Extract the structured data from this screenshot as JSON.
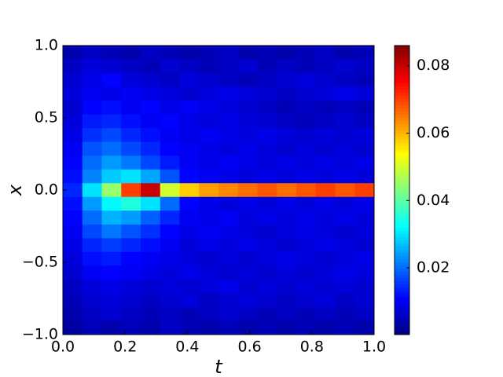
{
  "chart_data": {
    "type": "heatmap",
    "colormap": "jet",
    "xlabel": "t",
    "ylabel": "x",
    "xlim": [
      0,
      1
    ],
    "ylim": [
      -1,
      1
    ],
    "xticks": [
      {
        "value": 0,
        "label": "0.0"
      },
      {
        "value": 0.2,
        "label": "0.2"
      },
      {
        "value": 0.4,
        "label": "0.4"
      },
      {
        "value": 0.6,
        "label": "0.6"
      },
      {
        "value": 0.8,
        "label": "0.8"
      },
      {
        "value": 1,
        "label": "1.0"
      }
    ],
    "yticks": [
      {
        "value": -1,
        "label": "−1.0"
      },
      {
        "value": -0.5,
        "label": "−0.5"
      },
      {
        "value": 0,
        "label": "0.0"
      },
      {
        "value": 0.5,
        "label": "0.5"
      },
      {
        "value": 1,
        "label": "1.0"
      }
    ],
    "clim": [
      0.0002,
      0.086
    ],
    "cticks": [
      0.02,
      0.04,
      0.06,
      0.08
    ],
    "x": [
      0.03125,
      0.09375,
      0.15625,
      0.21875,
      0.28125,
      0.34375,
      0.40625,
      0.46875,
      0.53125,
      0.59375,
      0.65625,
      0.71875,
      0.78125,
      0.84375,
      0.90625,
      0.96875
    ],
    "y": [
      0.952,
      0.857,
      0.762,
      0.667,
      0.571,
      0.476,
      0.381,
      0.286,
      0.19,
      0.095,
      0,
      -0.095,
      -0.19,
      -0.286,
      -0.381,
      -0.476,
      -0.571,
      -0.667,
      -0.762,
      -0.857,
      -0.952
    ],
    "z": [
      [
        0.004,
        0.006,
        0.005,
        0.004,
        0.006,
        0.005,
        0.004,
        0.005,
        0.006,
        0.004,
        0.005,
        0.004,
        0.005,
        0.006,
        0.004,
        0.005
      ],
      [
        0.006,
        0.008,
        0.007,
        0.006,
        0.005,
        0.007,
        0.006,
        0.005,
        0.006,
        0.007,
        0.005,
        0.006,
        0.005,
        0.006,
        0.007,
        0.006
      ],
      [
        0.007,
        0.009,
        0.011,
        0.008,
        0.007,
        0.006,
        0.008,
        0.007,
        0.006,
        0.005,
        0.006,
        0.007,
        0.008,
        0.007,
        0.006,
        0.005
      ],
      [
        0.008,
        0.01,
        0.009,
        0.01,
        0.009,
        0.008,
        0.007,
        0.008,
        0.009,
        0.008,
        0.007,
        0.006,
        0.007,
        0.008,
        0.009,
        0.008
      ],
      [
        0.007,
        0.011,
        0.012,
        0.01,
        0.011,
        0.009,
        0.01,
        0.009,
        0.008,
        0.007,
        0.006,
        0.005,
        0.006,
        0.005,
        0.006,
        0.005
      ],
      [
        0.008,
        0.013,
        0.014,
        0.012,
        0.01,
        0.011,
        0.009,
        0.008,
        0.009,
        0.008,
        0.007,
        0.006,
        0.005,
        0.006,
        0.007,
        0.006
      ],
      [
        0.009,
        0.015,
        0.017,
        0.014,
        0.012,
        0.01,
        0.009,
        0.01,
        0.009,
        0.008,
        0.009,
        0.008,
        0.007,
        0.008,
        0.007,
        0.008
      ],
      [
        0.01,
        0.018,
        0.02,
        0.017,
        0.014,
        0.011,
        0.01,
        0.009,
        0.008,
        0.009,
        0.008,
        0.007,
        0.008,
        0.007,
        0.008,
        0.007
      ],
      [
        0.011,
        0.02,
        0.024,
        0.021,
        0.017,
        0.013,
        0.01,
        0.009,
        0.01,
        0.009,
        0.008,
        0.009,
        0.008,
        0.009,
        0.008,
        0.009
      ],
      [
        0.012,
        0.022,
        0.028,
        0.03,
        0.025,
        0.018,
        0.011,
        0.01,
        0.009,
        0.008,
        0.009,
        0.008,
        0.009,
        0.008,
        0.009,
        0.008
      ],
      [
        0.014,
        0.03,
        0.045,
        0.07,
        0.08,
        0.05,
        0.058,
        0.062,
        0.064,
        0.066,
        0.068,
        0.066,
        0.068,
        0.07,
        0.068,
        0.07
      ],
      [
        0.012,
        0.024,
        0.032,
        0.035,
        0.03,
        0.02,
        0.011,
        0.009,
        0.008,
        0.009,
        0.008,
        0.009,
        0.008,
        0.009,
        0.008,
        0.009
      ],
      [
        0.011,
        0.02,
        0.026,
        0.024,
        0.019,
        0.014,
        0.01,
        0.009,
        0.01,
        0.008,
        0.009,
        0.008,
        0.009,
        0.008,
        0.009,
        0.008
      ],
      [
        0.01,
        0.017,
        0.021,
        0.018,
        0.015,
        0.011,
        0.009,
        0.01,
        0.009,
        0.008,
        0.007,
        0.008,
        0.009,
        0.008,
        0.007,
        0.008
      ],
      [
        0.009,
        0.014,
        0.016,
        0.014,
        0.012,
        0.01,
        0.008,
        0.009,
        0.008,
        0.009,
        0.008,
        0.007,
        0.008,
        0.009,
        0.008,
        0.007
      ],
      [
        0.008,
        0.012,
        0.013,
        0.011,
        0.01,
        0.009,
        0.008,
        0.007,
        0.008,
        0.007,
        0.008,
        0.009,
        0.008,
        0.007,
        0.008,
        0.009
      ],
      [
        0.007,
        0.01,
        0.011,
        0.01,
        0.009,
        0.008,
        0.009,
        0.008,
        0.007,
        0.008,
        0.007,
        0.008,
        0.007,
        0.008,
        0.009,
        0.008
      ],
      [
        0.006,
        0.008,
        0.009,
        0.008,
        0.007,
        0.008,
        0.007,
        0.008,
        0.009,
        0.007,
        0.008,
        0.007,
        0.008,
        0.007,
        0.008,
        0.007
      ],
      [
        0.005,
        0.007,
        0.008,
        0.007,
        0.006,
        0.007,
        0.008,
        0.006,
        0.007,
        0.008,
        0.007,
        0.006,
        0.007,
        0.008,
        0.006,
        0.007
      ],
      [
        0.004,
        0.006,
        0.007,
        0.006,
        0.005,
        0.006,
        0.005,
        0.006,
        0.007,
        0.006,
        0.005,
        0.006,
        0.005,
        0.006,
        0.005,
        0.006
      ],
      [
        0.003,
        0.005,
        0.004,
        0.005,
        0.004,
        0.006,
        0.005,
        0.004,
        0.005,
        0.004,
        0.005,
        0.004,
        0.005,
        0.004,
        0.005,
        0.004
      ]
    ]
  }
}
